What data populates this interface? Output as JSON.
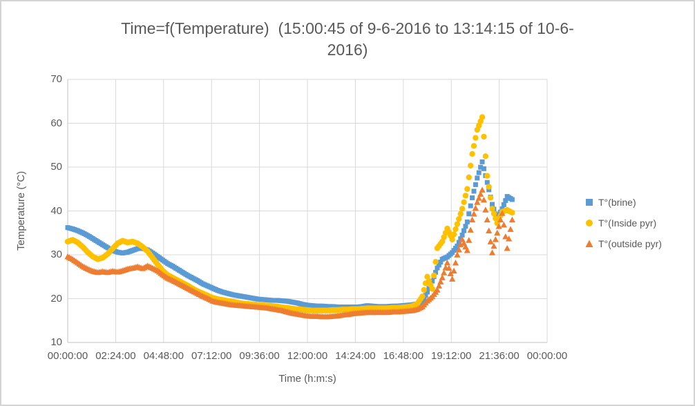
{
  "header": {
    "title_line1": "Time=f(Temperature)  (15:00:45 of 9-6-2016 to 13:14:15 of 10-6-",
    "title_line2": "2016)"
  },
  "colors": {
    "text": "#595959",
    "gridline": "#d9d9d9",
    "axis_line": "#c0c0c0",
    "brine_blue": "#5B9BD5",
    "inside_gold": "#FFC000",
    "outside_orange": "#ED7D31"
  },
  "chart_data": {
    "type": "scatter",
    "title": "Time=f(Temperature)  (15:00:45 of 9-6-2016 to 13:14:15 of 10-6-2016)",
    "xlabel": "Time (h:m:s)",
    "ylabel": "Temperature (°C)",
    "grid": true,
    "legend_position": "right",
    "x_axis": {
      "min_hours": 0,
      "max_hours": 24,
      "tick_step_hours": 2.4,
      "tick_labels": [
        "00:00:00",
        "02:24:00",
        "04:48:00",
        "07:12:00",
        "09:36:00",
        "12:00:00",
        "14:24:00",
        "16:48:00",
        "19:12:00",
        "21:36:00",
        "00:00:00"
      ]
    },
    "y_axis": {
      "min": 10,
      "max": 70,
      "tick_step": 10,
      "tick_labels": [
        "10",
        "20",
        "30",
        "40",
        "50",
        "60",
        "70"
      ]
    },
    "x_hours": [
      0,
      0.25,
      0.5,
      0.75,
      1,
      1.25,
      1.5,
      1.75,
      2,
      2.25,
      2.5,
      2.75,
      3,
      3.25,
      3.5,
      3.75,
      4,
      4.25,
      4.5,
      4.75,
      5,
      5.25,
      5.5,
      5.75,
      6,
      6.25,
      6.5,
      6.75,
      7,
      7.25,
      7.5,
      7.75,
      8,
      8.25,
      8.5,
      8.75,
      9,
      9.25,
      9.5,
      9.75,
      10,
      10.25,
      10.5,
      10.75,
      11,
      11.25,
      11.5,
      11.75,
      12,
      12.25,
      12.5,
      12.75,
      13,
      13.25,
      13.5,
      13.75,
      14,
      14.25,
      14.5,
      14.75,
      15,
      15.25,
      15.5,
      15.75,
      16,
      16.25,
      16.5,
      16.75,
      17,
      17.25,
      17.5,
      17.75,
      18,
      18.25,
      18.5,
      18.75,
      19,
      19.25,
      19.5,
      19.75,
      20,
      20.25,
      20.5,
      20.75,
      21,
      21.25,
      21.5,
      21.75,
      22,
      22.25
    ],
    "series": [
      {
        "name": "T°(brine)",
        "marker": "square",
        "color": "#5B9BD5",
        "values": [
          36.2,
          35.9,
          35.5,
          35.0,
          34.4,
          33.7,
          33.0,
          32.3,
          31.6,
          31.0,
          30.6,
          30.4,
          30.6,
          31.0,
          31.4,
          31.5,
          31.1,
          30.4,
          29.6,
          28.8,
          28.0,
          27.4,
          26.7,
          26.0,
          25.3,
          24.7,
          24.1,
          23.4,
          22.9,
          22.4,
          21.9,
          21.5,
          21.2,
          20.9,
          20.7,
          20.5,
          20.3,
          20.1,
          19.9,
          19.8,
          19.7,
          19.6,
          19.6,
          19.5,
          19.4,
          19.2,
          19.0,
          18.7,
          18.5,
          18.4,
          18.3,
          18.3,
          18.2,
          18.2,
          18.1,
          18.1,
          18.1,
          18.1,
          18.1,
          18.2,
          18.4,
          18.3,
          18.2,
          18.2,
          18.2,
          18.3,
          18.3,
          18.4,
          18.5,
          18.6,
          18.8,
          19.2,
          21.5,
          24.0,
          27.0,
          29.0,
          29.5,
          30.5,
          32.0,
          34.5,
          37.5,
          43.0,
          47.5,
          51.2,
          46.5,
          41.5,
          38.2,
          40.5,
          43.3,
          42.6
        ]
      },
      {
        "name": "T°(Inside pyr)",
        "marker": "circle",
        "color": "#FFC000",
        "values": [
          33.0,
          33.4,
          32.8,
          31.8,
          30.6,
          29.6,
          29.0,
          29.3,
          30.2,
          31.4,
          32.6,
          33.2,
          32.8,
          33.0,
          32.6,
          31.8,
          30.8,
          29.3,
          27.8,
          26.4,
          25.4,
          24.8,
          24.2,
          23.6,
          23.0,
          22.3,
          21.7,
          21.2,
          20.7,
          20.2,
          19.9,
          19.7,
          19.5,
          19.3,
          19.1,
          18.9,
          18.8,
          18.7,
          18.6,
          18.5,
          18.4,
          18.3,
          18.2,
          18.0,
          17.9,
          17.7,
          17.6,
          17.5,
          17.4,
          17.3,
          17.3,
          17.3,
          17.3,
          17.4,
          17.4,
          17.5,
          17.5,
          17.6,
          17.6,
          17.7,
          17.8,
          17.8,
          17.8,
          17.8,
          17.8,
          17.9,
          17.9,
          18.0,
          18.1,
          18.3,
          18.8,
          20.5,
          25.0,
          22.2,
          31.5,
          33.0,
          36.0,
          33.5,
          37.0,
          40.5,
          45.0,
          53.0,
          58.5,
          61.4,
          48.0,
          40.5,
          37.2,
          39.8,
          40.2,
          39.6
        ]
      },
      {
        "name": "T°(outside pyr)",
        "marker": "triangle",
        "color": "#ED7D31",
        "values": [
          29.6,
          29.0,
          28.2,
          27.4,
          26.8,
          26.3,
          26.0,
          26.2,
          26.0,
          26.3,
          26.1,
          26.4,
          26.8,
          27.0,
          27.3,
          26.9,
          27.5,
          27.0,
          26.4,
          25.5,
          24.7,
          24.2,
          23.6,
          23.0,
          22.4,
          21.8,
          21.2,
          20.6,
          20.1,
          19.5,
          19.2,
          19.0,
          18.8,
          18.6,
          18.5,
          18.4,
          18.3,
          18.2,
          18.1,
          18.0,
          17.9,
          17.7,
          17.5,
          17.3,
          17.0,
          16.7,
          16.5,
          16.3,
          16.1,
          16.0,
          16.0,
          15.9,
          15.9,
          16.0,
          16.1,
          16.3,
          16.4,
          16.6,
          16.7,
          16.8,
          16.9,
          16.9,
          16.9,
          16.9,
          16.9,
          17.0,
          17.0,
          17.1,
          17.2,
          17.3,
          17.6,
          18.2,
          19.5,
          20.5,
          22.0,
          24.8,
          28.2,
          24.5,
          30.0,
          33.5,
          31.0,
          38.0,
          42.0,
          44.8,
          38.0,
          30.5,
          35.0,
          39.5,
          31.5,
          38.0
        ]
      }
    ]
  }
}
